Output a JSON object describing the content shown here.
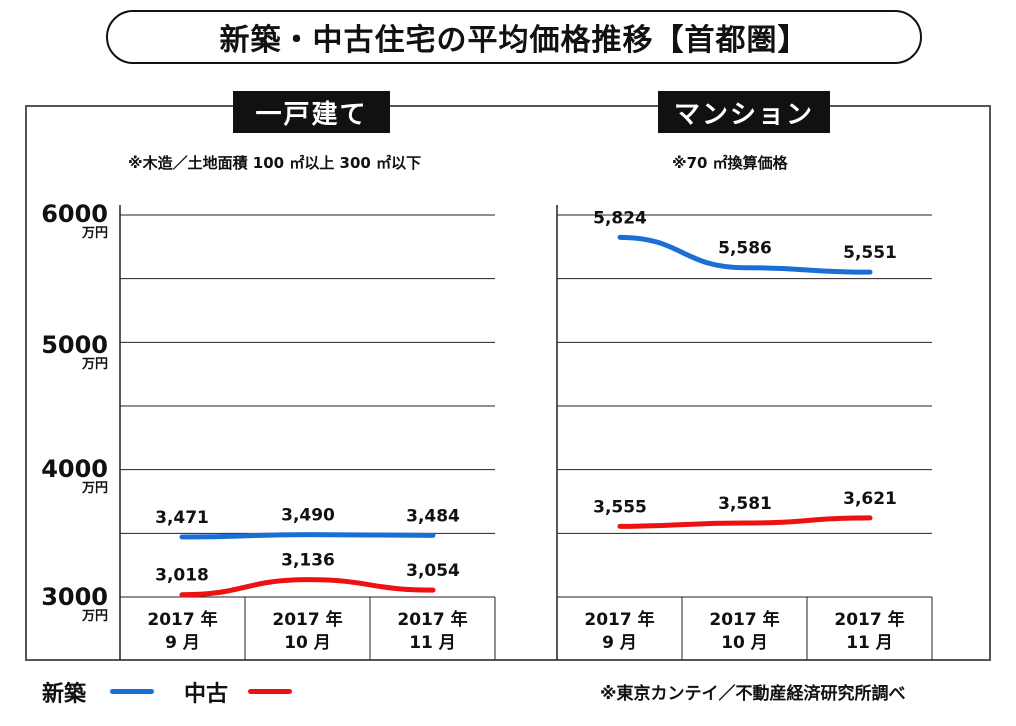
{
  "title": "新築・中古住宅の平均価格推移【首都圏】",
  "source_note": "※東京カンテイ／不動産経済研究所調べ",
  "legend": [
    {
      "label": "新築",
      "color": "#1a6fd6"
    },
    {
      "label": "中古",
      "color": "#ee1111"
    }
  ],
  "y_axis": {
    "ticks": [
      {
        "value": 6000,
        "label": "6000"
      },
      {
        "value": 5000,
        "label": "5000"
      },
      {
        "value": 4000,
        "label": "4000"
      },
      {
        "value": 3000,
        "label": "3000"
      }
    ],
    "unit": "万円"
  },
  "chart_data": [
    {
      "type": "line",
      "title": "一戸建て",
      "subtitle": "※木造／土地面積 100 ㎡以上 300 ㎡以下",
      "categories": [
        {
          "year": "2017 年",
          "month": "9 月"
        },
        {
          "year": "2017 年",
          "month": "10 月"
        },
        {
          "year": "2017 年",
          "month": "11 月"
        }
      ],
      "ylim": [
        3000,
        6000
      ],
      "grid": true,
      "series": [
        {
          "name": "新築",
          "color": "#1a6fd6",
          "values": [
            3471,
            3490,
            3484
          ],
          "labels": [
            "3,471",
            "3,490",
            "3,484"
          ]
        },
        {
          "name": "中古",
          "color": "#ee1111",
          "values": [
            3018,
            3136,
            3054
          ],
          "labels": [
            "3,018",
            "3,136",
            "3,054"
          ]
        }
      ]
    },
    {
      "type": "line",
      "title": "マンション",
      "subtitle": "※70 ㎡換算価格",
      "categories": [
        {
          "year": "2017 年",
          "month": "9 月"
        },
        {
          "year": "2017 年",
          "month": "10 月"
        },
        {
          "year": "2017 年",
          "month": "11 月"
        }
      ],
      "ylim": [
        3000,
        6000
      ],
      "grid": true,
      "series": [
        {
          "name": "新築",
          "color": "#1a6fd6",
          "values": [
            5824,
            5586,
            5551
          ],
          "labels": [
            "5,824",
            "5,586",
            "5,551"
          ]
        },
        {
          "name": "中古",
          "color": "#ee1111",
          "values": [
            3555,
            3581,
            3621
          ],
          "labels": [
            "3,555",
            "3,581",
            "3,621"
          ]
        }
      ]
    }
  ]
}
